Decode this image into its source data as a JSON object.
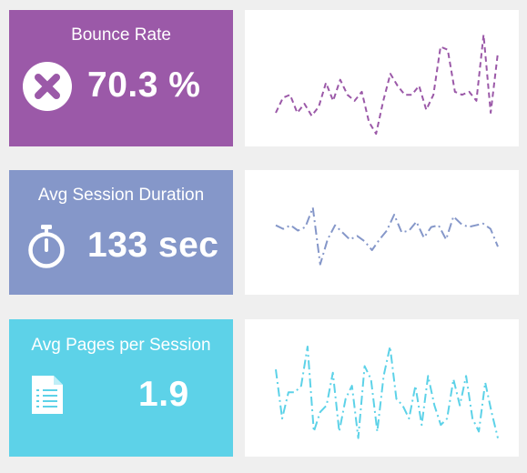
{
  "colors": {
    "background": "#efefef",
    "card": "#ffffff"
  },
  "kpis": [
    {
      "title": "Bounce Rate",
      "value": "70.3 %",
      "icon": "x-circle-icon",
      "color": "#9b59a8"
    },
    {
      "title": "Avg Session Duration",
      "value": "133 sec",
      "icon": "stopwatch-icon",
      "color": "#8597c9"
    },
    {
      "title": "Avg Pages per Session",
      "value": "1.9",
      "icon": "document-list-icon",
      "color": "#5dd2e8"
    }
  ],
  "chart_data": [
    {
      "type": "line",
      "series": [
        {
          "values": [
            72.0,
            74.5,
            75.0,
            72.0,
            73.5,
            71.5,
            73.0,
            77.0,
            74.0,
            77.5,
            75.0,
            74.0,
            75.5,
            70.5,
            68.5,
            74.0,
            78.5,
            76.5,
            75.0,
            75.0,
            76.5,
            72.5,
            75.0,
            83.0,
            82.5,
            75.5,
            75.0,
            75.5,
            74.0,
            85.0,
            72.0,
            82.0
          ]
        }
      ],
      "ylim": [
        67,
        87
      ],
      "line_color": "#9b59a8",
      "line_style": "dashed",
      "grid": false
    },
    {
      "type": "line",
      "series": [
        {
          "values": [
            135.0,
            134.0,
            135.0,
            133.5,
            134.5,
            140.0,
            124.0,
            131.0,
            135.0,
            133.0,
            131.0,
            132.0,
            130.5,
            128.0,
            131.0,
            133.5,
            138.0,
            133.0,
            133.5,
            136.0,
            131.5,
            134.5,
            135.0,
            131.0,
            137.5,
            135.5,
            134.5,
            135.0,
            135.5,
            134.0,
            129.0
          ]
        }
      ],
      "ylim": [
        118,
        148
      ],
      "line_color": "#8597c9",
      "line_style": "dash-dot",
      "grid": false
    },
    {
      "type": "line",
      "series": [
        {
          "values": [
            2.15,
            1.4,
            1.8,
            1.8,
            1.9,
            2.5,
            1.2,
            1.5,
            1.6,
            2.1,
            1.2,
            1.7,
            1.9,
            1.1,
            2.2,
            2.0,
            1.2,
            2.05,
            2.5,
            1.7,
            1.6,
            1.4,
            1.9,
            1.3,
            2.05,
            1.6,
            1.3,
            1.4,
            2.0,
            1.6,
            2.05,
            1.4,
            1.2,
            1.95,
            1.5,
            1.1
          ]
        }
      ],
      "ylim": [
        0.9,
        2.75
      ],
      "line_color": "#5dd2e8",
      "line_style": "dash-dot",
      "grid": false
    }
  ]
}
